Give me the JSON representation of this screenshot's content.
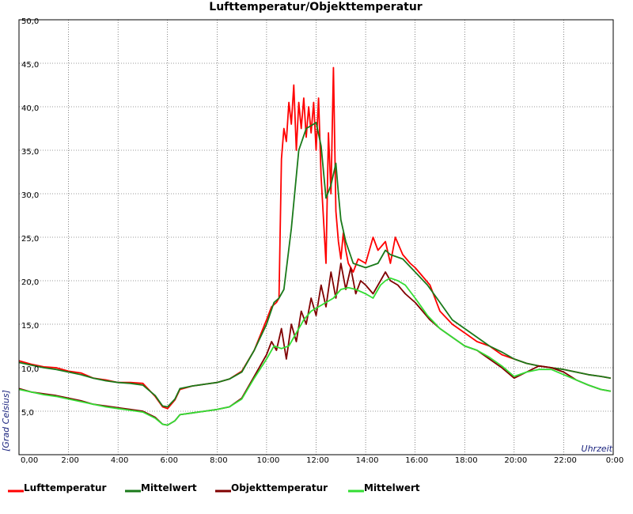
{
  "chart_data": {
    "type": "line",
    "title": "Lufttemperatur/Objekttemperatur",
    "xlabel": "Uhrzeit",
    "ylabel": "[Grad Celsius]",
    "xlim": [
      0,
      24
    ],
    "ylim": [
      0,
      50
    ],
    "x_ticks": [
      {
        "value": 0,
        "label": "0,00"
      },
      {
        "value": 2,
        "label": "2:00"
      },
      {
        "value": 4,
        "label": "4:00"
      },
      {
        "value": 6,
        "label": "6:00"
      },
      {
        "value": 8,
        "label": "8:00"
      },
      {
        "value": 10,
        "label": "10:00"
      },
      {
        "value": 12,
        "label": "12:00"
      },
      {
        "value": 14,
        "label": "14:00"
      },
      {
        "value": 16,
        "label": "16:00"
      },
      {
        "value": 18,
        "label": "18:00"
      },
      {
        "value": 20,
        "label": "20:00"
      },
      {
        "value": 22,
        "label": "22:00"
      },
      {
        "value": 24,
        "label": "0:00"
      }
    ],
    "y_ticks": [
      {
        "value": 5,
        "label": "5,0"
      },
      {
        "value": 10,
        "label": "10,0"
      },
      {
        "value": 15,
        "label": "15,0"
      },
      {
        "value": 20,
        "label": "20,0"
      },
      {
        "value": 25,
        "label": "25,0"
      },
      {
        "value": 30,
        "label": "30,0"
      },
      {
        "value": 35,
        "label": "35,0"
      },
      {
        "value": 40,
        "label": "40,0"
      },
      {
        "value": 45,
        "label": "45,0"
      },
      {
        "value": 50,
        "label": "50,0"
      }
    ],
    "grid": true,
    "legend_position": "bottom",
    "series": [
      {
        "name": "Lufttemperatur",
        "color": "#ff0000",
        "x": [
          0,
          0.5,
          1,
          1.5,
          2,
          2.5,
          3,
          3.5,
          4,
          4.5,
          5,
          5.5,
          5.8,
          6,
          6.3,
          6.5,
          7,
          7.5,
          8,
          8.5,
          9,
          9.5,
          10,
          10.2,
          10.4,
          10.5,
          10.6,
          10.7,
          10.8,
          10.9,
          11.0,
          11.1,
          11.2,
          11.3,
          11.4,
          11.5,
          11.6,
          11.7,
          11.8,
          11.9,
          12.0,
          12.1,
          12.2,
          12.3,
          12.4,
          12.5,
          12.6,
          12.7,
          12.8,
          12.9,
          13.0,
          13.1,
          13.2,
          13.3,
          13.5,
          13.7,
          14.0,
          14.3,
          14.5,
          14.8,
          15.0,
          15.2,
          15.5,
          15.8,
          16.0,
          16.3,
          16.6,
          17.0,
          17.5,
          18.0,
          18.5,
          19.0,
          19.5,
          20.0,
          20.5,
          21.0,
          21.5,
          22.0,
          22.5,
          23.0,
          23.5,
          23.9
        ],
        "y": [
          10.8,
          10.4,
          10.1,
          10.0,
          9.6,
          9.4,
          8.8,
          8.6,
          8.3,
          8.3,
          8.2,
          6.7,
          5.5,
          5.3,
          6.3,
          7.5,
          7.9,
          8.1,
          8.3,
          8.7,
          9.6,
          12.0,
          15.5,
          17.0,
          17.5,
          18.0,
          34.0,
          37.5,
          36.0,
          40.5,
          38.0,
          42.5,
          35.0,
          40.5,
          37.5,
          41.0,
          36.5,
          40.0,
          37.0,
          40.5,
          35.0,
          41.0,
          32.0,
          27.0,
          22.0,
          37.0,
          30.0,
          44.5,
          28.0,
          24.5,
          22.5,
          25.5,
          23.5,
          22.0,
          21.0,
          22.5,
          22.0,
          25.0,
          23.5,
          24.5,
          22.0,
          25.0,
          23.0,
          22.0,
          21.5,
          20.5,
          19.5,
          16.5,
          15.0,
          14.0,
          13.0,
          12.5,
          11.5,
          11.0,
          10.5,
          10.2,
          10.0,
          9.8,
          9.5,
          9.2,
          9.0,
          8.8
        ]
      },
      {
        "name": "Mittelwert",
        "color": "#1a7a1a",
        "x": [
          0,
          0.5,
          1,
          1.5,
          2,
          2.5,
          3,
          3.5,
          4,
          4.5,
          5,
          5.5,
          5.8,
          6,
          6.3,
          6.5,
          7,
          7.5,
          8,
          8.5,
          9,
          9.5,
          10,
          10.3,
          10.5,
          10.7,
          11.0,
          11.3,
          11.6,
          11.9,
          12.0,
          12.2,
          12.4,
          12.6,
          12.8,
          12.9,
          13.0,
          13.2,
          13.5,
          14.0,
          14.5,
          14.8,
          15.0,
          15.5,
          16.0,
          16.5,
          17.0,
          17.5,
          18.0,
          18.5,
          19.0,
          19.5,
          20.0,
          20.5,
          21.0,
          21.5,
          22.0,
          22.5,
          23.0,
          23.5,
          23.9
        ],
        "y": [
          10.6,
          10.3,
          10.0,
          9.8,
          9.5,
          9.2,
          8.8,
          8.5,
          8.3,
          8.2,
          8.0,
          6.8,
          5.6,
          5.5,
          6.4,
          7.6,
          7.9,
          8.1,
          8.3,
          8.7,
          9.5,
          12.0,
          15.0,
          17.5,
          18.0,
          19.0,
          26.0,
          35.0,
          37.5,
          38.0,
          38.2,
          35.5,
          29.5,
          31.0,
          33.5,
          30.0,
          27.0,
          24.5,
          22.0,
          21.5,
          22.0,
          23.5,
          23.0,
          22.5,
          21.0,
          19.5,
          17.5,
          15.5,
          14.5,
          13.5,
          12.5,
          11.8,
          11.0,
          10.5,
          10.2,
          10.0,
          9.8,
          9.5,
          9.2,
          9.0,
          8.8
        ]
      },
      {
        "name": "Objekttemperatur",
        "color": "#800000",
        "x": [
          0,
          0.5,
          1,
          1.5,
          2,
          2.5,
          3,
          3.5,
          4,
          4.5,
          5,
          5.5,
          5.8,
          6,
          6.3,
          6.5,
          7,
          7.5,
          8,
          8.5,
          9,
          9.5,
          10,
          10.2,
          10.4,
          10.6,
          10.8,
          11.0,
          11.2,
          11.4,
          11.6,
          11.8,
          12.0,
          12.2,
          12.4,
          12.6,
          12.8,
          13.0,
          13.2,
          13.4,
          13.6,
          13.8,
          14.0,
          14.3,
          14.6,
          14.8,
          15.0,
          15.3,
          15.6,
          16.0,
          16.3,
          16.6,
          17.0,
          17.5,
          18.0,
          18.5,
          19.0,
          19.5,
          20.0,
          20.5,
          21.0,
          21.5,
          22.0,
          22.5,
          23.0,
          23.5,
          23.9
        ],
        "y": [
          7.6,
          7.2,
          7.0,
          6.8,
          6.5,
          6.2,
          5.8,
          5.6,
          5.4,
          5.2,
          5.0,
          4.3,
          3.5,
          3.4,
          3.9,
          4.6,
          4.8,
          5.0,
          5.2,
          5.5,
          6.5,
          9.0,
          11.5,
          13.0,
          12.0,
          14.5,
          11.0,
          15.0,
          13.0,
          16.5,
          15.0,
          18.0,
          16.0,
          19.5,
          17.0,
          21.0,
          18.0,
          22.0,
          19.0,
          21.5,
          18.5,
          20.0,
          19.5,
          18.5,
          20.0,
          21.0,
          20.0,
          19.5,
          18.5,
          17.5,
          16.5,
          15.5,
          14.5,
          13.5,
          12.5,
          12.0,
          11.0,
          10.0,
          8.8,
          9.5,
          10.2,
          10.0,
          9.5,
          8.6,
          8.0,
          7.5,
          7.3
        ]
      },
      {
        "name": "Mittelwert",
        "color": "#33dd33",
        "x": [
          0,
          0.5,
          1,
          1.5,
          2,
          2.5,
          3,
          3.5,
          4,
          4.5,
          5,
          5.5,
          5.8,
          6,
          6.3,
          6.5,
          7,
          7.5,
          8,
          8.5,
          9,
          9.5,
          10,
          10.3,
          10.6,
          10.9,
          11.2,
          11.5,
          11.8,
          12.1,
          12.4,
          12.7,
          13.0,
          13.3,
          13.6,
          14.0,
          14.3,
          14.6,
          14.8,
          15.0,
          15.3,
          15.6,
          16.0,
          16.5,
          17.0,
          17.5,
          18.0,
          18.5,
          19.0,
          19.5,
          20.0,
          20.5,
          21.0,
          21.5,
          22.0,
          22.5,
          23.0,
          23.5,
          23.9
        ],
        "y": [
          7.5,
          7.2,
          6.9,
          6.7,
          6.4,
          6.1,
          5.8,
          5.5,
          5.3,
          5.1,
          4.9,
          4.2,
          3.5,
          3.4,
          3.9,
          4.6,
          4.8,
          5.0,
          5.2,
          5.5,
          6.4,
          8.8,
          11.0,
          12.5,
          12.2,
          12.5,
          14.0,
          15.5,
          16.5,
          17.0,
          17.5,
          18.0,
          19.0,
          19.2,
          19.0,
          18.5,
          18.0,
          19.5,
          20.0,
          20.3,
          20.0,
          19.5,
          18.0,
          16.0,
          14.5,
          13.5,
          12.5,
          12.0,
          11.2,
          10.2,
          9.0,
          9.5,
          9.8,
          9.8,
          9.2,
          8.6,
          8.0,
          7.5,
          7.3
        ]
      }
    ]
  }
}
